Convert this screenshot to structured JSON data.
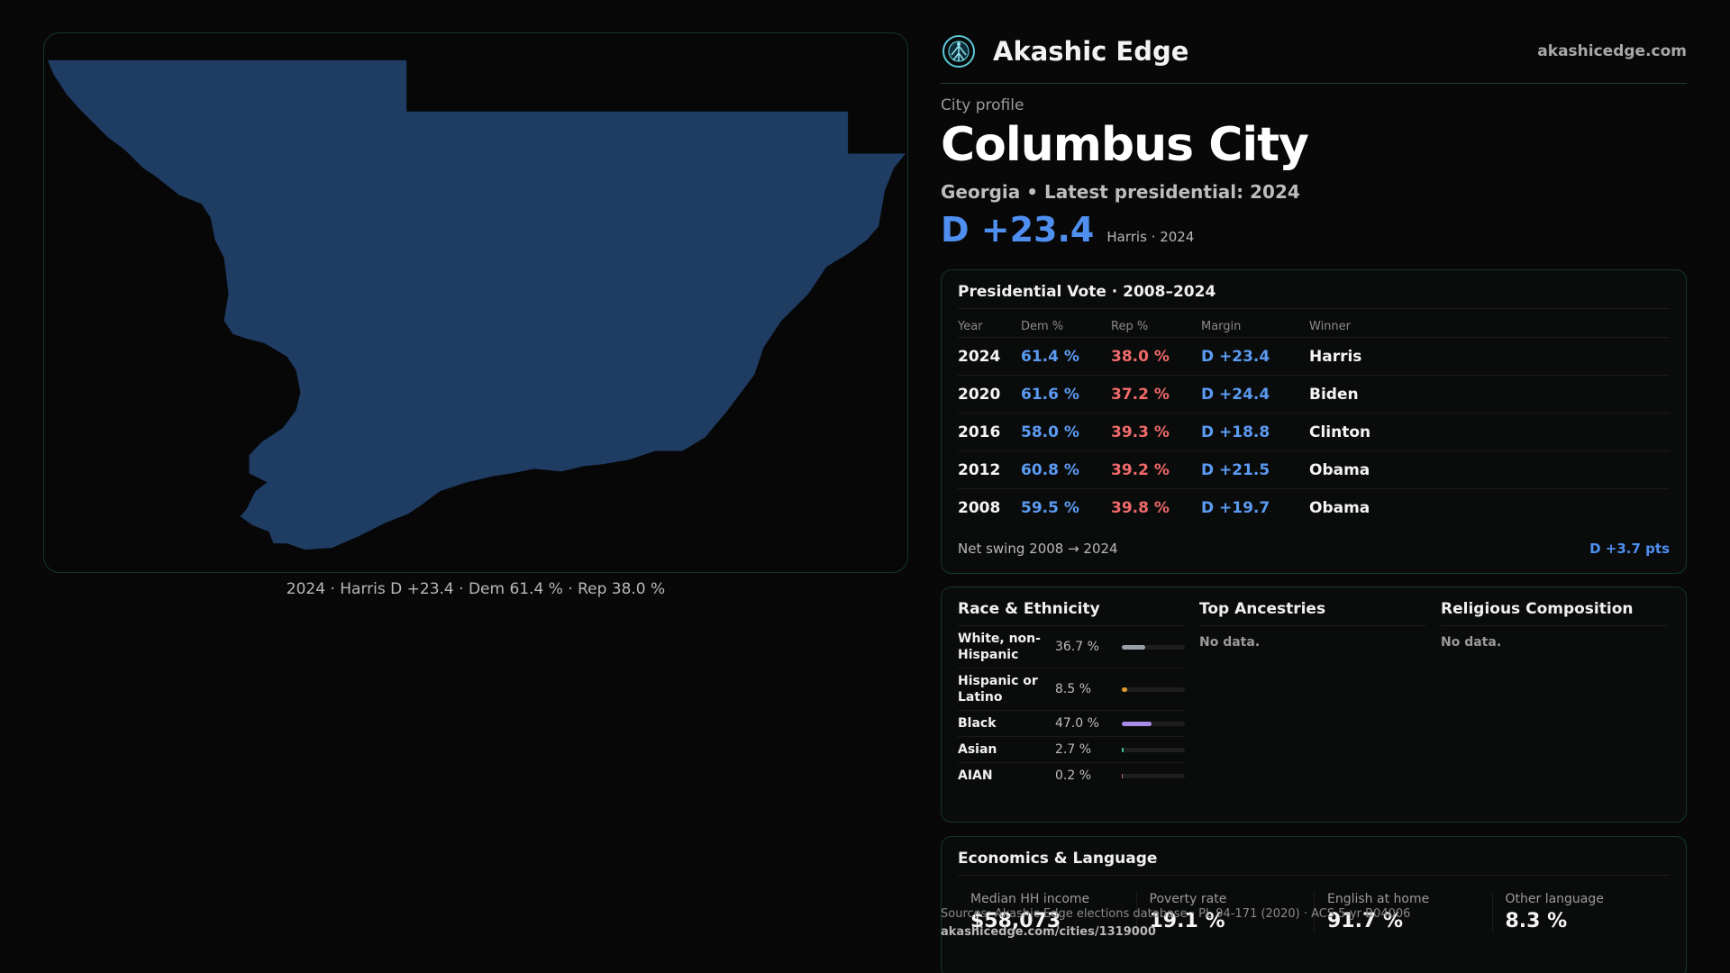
{
  "brand": {
    "name": "Akashic Edge",
    "site": "akashicedge.com"
  },
  "profile": {
    "eyebrow": "City profile",
    "title": "Columbus City",
    "subtitle": "Georgia • Latest presidential: 2024",
    "margin": "D +23.4",
    "margin_note": "Harris · 2024"
  },
  "map": {
    "caption": "2024 · Harris D +23.4 · Dem 61.4 % · Rep 38.0 %",
    "fill_color": "#1f3c63"
  },
  "vote": {
    "title": "Presidential Vote · 2008–2024",
    "headers": [
      "Year",
      "Dem %",
      "Rep %",
      "Margin",
      "Winner"
    ],
    "rows": [
      {
        "year": "2024",
        "dem": "61.4 %",
        "rep": "38.0 %",
        "margin": "D +23.4",
        "winner": "Harris"
      },
      {
        "year": "2020",
        "dem": "61.6 %",
        "rep": "37.2 %",
        "margin": "D +24.4",
        "winner": "Biden"
      },
      {
        "year": "2016",
        "dem": "58.0 %",
        "rep": "39.3 %",
        "margin": "D +18.8",
        "winner": "Clinton"
      },
      {
        "year": "2012",
        "dem": "60.8 %",
        "rep": "39.2 %",
        "margin": "D +21.5",
        "winner": "Obama"
      },
      {
        "year": "2008",
        "dem": "59.5 %",
        "rep": "39.8 %",
        "margin": "D +19.7",
        "winner": "Obama"
      }
    ],
    "swing_label": "Net swing 2008 → 2024",
    "swing_value": "D +3.7 pts"
  },
  "race": {
    "title": "Race & Ethnicity",
    "rows": [
      {
        "name": "White, non-Hispanic",
        "value": "36.7 %",
        "fraction": 0.367,
        "color": "#9aa0aa"
      },
      {
        "name": "Hispanic or Latino",
        "value": "8.5 %",
        "fraction": 0.085,
        "color": "#e09a2c"
      },
      {
        "name": "Black",
        "value": "47.0 %",
        "fraction": 0.47,
        "color": "#a98be8"
      },
      {
        "name": "Asian",
        "value": "2.7 %",
        "fraction": 0.027,
        "color": "#3cc6a0"
      },
      {
        "name": "AIAN",
        "value": "0.2 %",
        "fraction": 0.002,
        "color": "#c46b6b"
      }
    ]
  },
  "ancestries": {
    "title": "Top Ancestries",
    "empty": "No data."
  },
  "religion": {
    "title": "Religious Composition",
    "empty": "No data."
  },
  "econ": {
    "title": "Economics & Language",
    "items": [
      {
        "label": "Median HH income",
        "value": "$58,073"
      },
      {
        "label": "Poverty rate",
        "value": "19.1 %"
      },
      {
        "label": "English at home",
        "value": "91.7 %"
      },
      {
        "label": "Other language",
        "value": "8.3 %"
      }
    ]
  },
  "source": {
    "text": "Sources: Akashic Edge elections database · PL 94-171 (2020) · ACS 5-yr B04006",
    "url": "akashicedge.com/cities/1319000"
  }
}
